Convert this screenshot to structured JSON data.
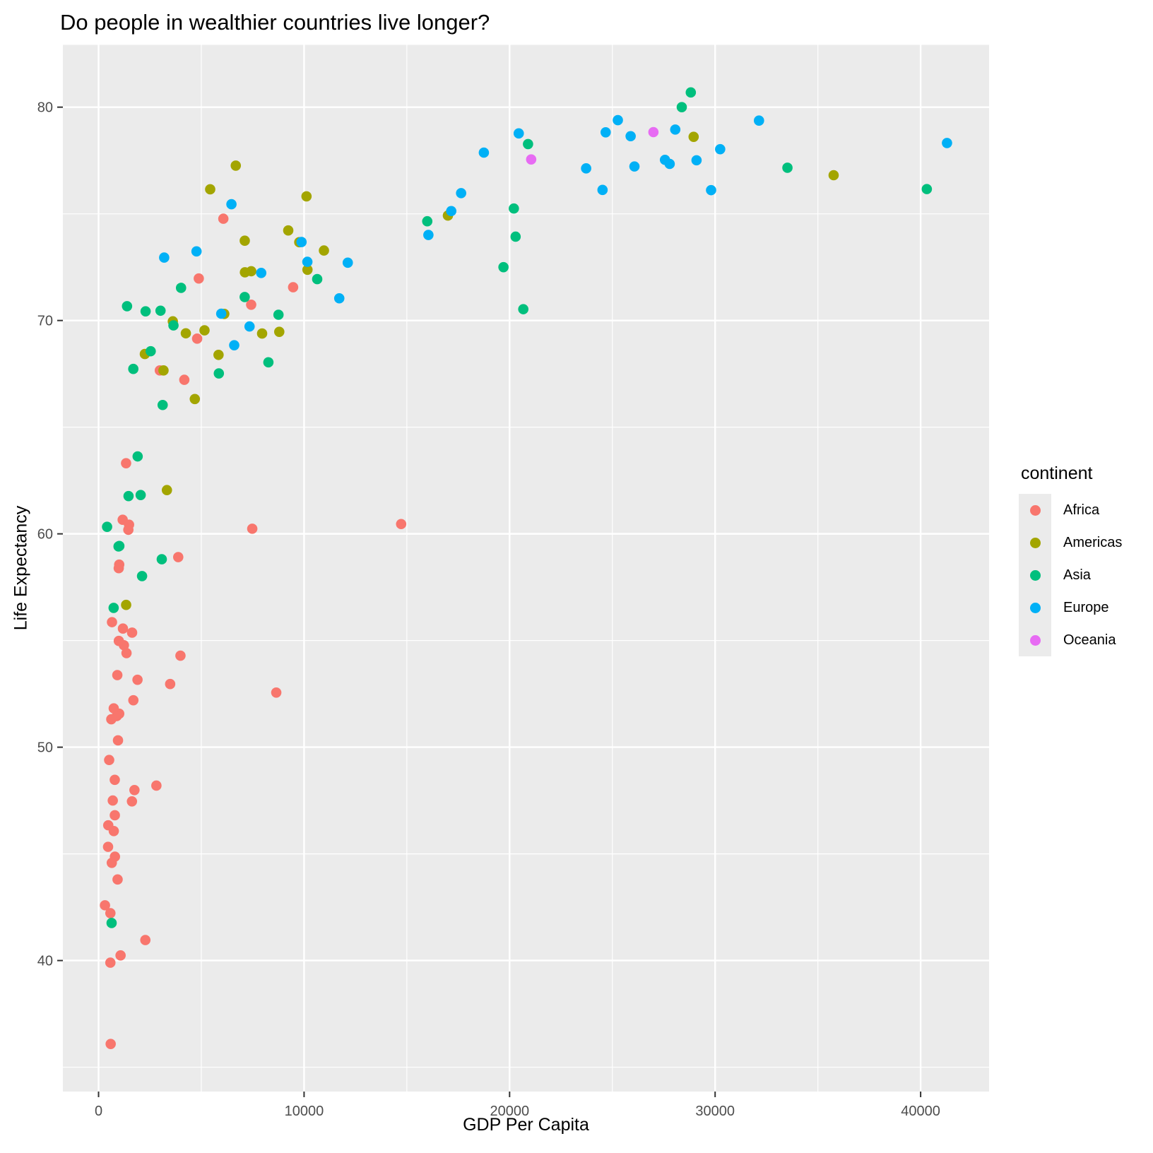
{
  "chart_data": {
    "type": "scatter",
    "title": "Do people in wealthier countries live longer?",
    "xlabel": "GDP Per Capita",
    "ylabel": "Life Expectancy",
    "legend_title": "continent",
    "legend_position": "right",
    "grid": true,
    "panel_bg": "#EBEBEB",
    "grid_color": "#FFFFFF",
    "tick_label_color": "#4D4D4D",
    "tick_mark_color": "#333333",
    "xlim": [
      -1736,
      43331
    ],
    "ylim": [
      33.86,
      82.92
    ],
    "x_ticks": {
      "values": [
        0,
        10000,
        20000,
        30000,
        40000
      ],
      "labels": [
        "0",
        "10000",
        "20000",
        "30000",
        "40000"
      ]
    },
    "y_ticks": {
      "values": [
        40,
        50,
        60,
        70,
        80
      ],
      "labels": [
        "40",
        "50",
        "60",
        "70",
        "80"
      ]
    },
    "x_minor": [
      5000,
      15000,
      25000,
      35000
    ],
    "y_minor": [
      35,
      45,
      55,
      65,
      75
    ],
    "series": [
      {
        "name": "Africa",
        "color": "#F8766D",
        "points": [
          [
            4797,
            69.15
          ],
          [
            2277,
            40.96
          ],
          [
            1233,
            54.78
          ],
          [
            8647,
            52.56
          ],
          [
            946,
            50.32
          ],
          [
            463,
            45.33
          ],
          [
            1694,
            52.2
          ],
          [
            741,
            46.07
          ],
          [
            1005,
            51.57
          ],
          [
            1174,
            60.66
          ],
          [
            312,
            42.59
          ],
          [
            3484,
            52.96
          ],
          [
            1747,
            47.99
          ],
          [
            1895,
            53.16
          ],
          [
            4173,
            67.22
          ],
          [
            2814,
            48.2
          ],
          [
            913,
            53.38
          ],
          [
            516,
            49.4
          ],
          [
            14723,
            60.46
          ],
          [
            654,
            55.86
          ],
          [
            1005,
            58.56
          ],
          [
            887,
            51.46
          ],
          [
            797,
            44.87
          ],
          [
            1360,
            54.41
          ],
          [
            1186,
            55.56
          ],
          [
            576,
            42.22
          ],
          [
            9467,
            71.56
          ],
          [
            986,
            54.98
          ],
          [
            692,
            47.5
          ],
          [
            739,
            51.82
          ],
          [
            1483,
            60.43
          ],
          [
            7426,
            70.74
          ],
          [
            2982,
            67.66
          ],
          [
            472,
            46.34
          ],
          [
            3877,
            58.91
          ],
          [
            620,
            51.31
          ],
          [
            1625,
            47.46
          ],
          [
            6072,
            74.77
          ],
          [
            590,
            36.09
          ],
          [
            1339,
            63.31
          ],
          [
            1450,
            60.19
          ],
          [
            575,
            39.9
          ],
          [
            926,
            43.8
          ],
          [
            7479,
            60.24
          ],
          [
            1632,
            55.37
          ],
          [
            3985,
            54.29
          ],
          [
            789,
            48.47
          ],
          [
            982,
            58.39
          ],
          [
            4877,
            71.97
          ],
          [
            644,
            44.58
          ],
          [
            1071,
            40.24
          ],
          [
            792,
            46.81
          ]
        ]
      },
      {
        "name": "Americas",
        "color": "#A3A500",
        "points": [
          [
            10967,
            73.28
          ],
          [
            3326,
            62.05
          ],
          [
            7958,
            69.39
          ],
          [
            28955,
            78.61
          ],
          [
            10118,
            75.82
          ],
          [
            6117,
            70.31
          ],
          [
            6677,
            77.26
          ],
          [
            5432,
            76.15
          ],
          [
            3614,
            69.96
          ],
          [
            7429,
            72.31
          ],
          [
            5155,
            69.54
          ],
          [
            4684,
            66.32
          ],
          [
            1342,
            56.67
          ],
          [
            3160,
            67.66
          ],
          [
            7122,
            72.26
          ],
          [
            9767,
            73.67
          ],
          [
            2253,
            68.43
          ],
          [
            7114,
            73.74
          ],
          [
            4247,
            69.4
          ],
          [
            5838,
            68.39
          ],
          [
            16999,
            74.92
          ],
          [
            8793,
            69.47
          ],
          [
            35767,
            76.81
          ],
          [
            9230,
            74.22
          ],
          [
            10165,
            72.38
          ]
        ]
      },
      {
        "name": "Asia",
        "color": "#00BF7D",
        "points": [
          [
            635,
            41.76
          ],
          [
            20292,
            73.93
          ],
          [
            973,
            59.41
          ],
          [
            734,
            56.53
          ],
          [
            2289,
            70.43
          ],
          [
            28378,
            80.0
          ],
          [
            1459,
            61.77
          ],
          [
            3119,
            66.04
          ],
          [
            8264,
            68.04
          ],
          [
            3076,
            58.81
          ],
          [
            20897,
            78.27
          ],
          [
            28817,
            80.69
          ],
          [
            3645,
            69.77
          ],
          [
            1691,
            67.73
          ],
          [
            15994,
            74.65
          ],
          [
            40301,
            76.16
          ],
          [
            8755,
            70.27
          ],
          [
            10639,
            71.94
          ],
          [
            1902,
            63.63
          ],
          [
            415,
            60.33
          ],
          [
            1011,
            59.43
          ],
          [
            19702,
            72.5
          ],
          [
            2049,
            61.82
          ],
          [
            2537,
            68.56
          ],
          [
            20667,
            70.53
          ],
          [
            33519,
            77.16
          ],
          [
            3015,
            70.46
          ],
          [
            4014,
            71.53
          ],
          [
            20207,
            75.25
          ],
          [
            5853,
            67.52
          ],
          [
            1386,
            70.67
          ],
          [
            7111,
            71.1
          ],
          [
            2117,
            58.02
          ]
        ]
      },
      {
        "name": "Europe",
        "color": "#00B0F6",
        "points": [
          [
            3193,
            72.95
          ],
          [
            29096,
            77.51
          ],
          [
            27561,
            77.53
          ],
          [
            4766,
            73.24
          ],
          [
            5970,
            70.32
          ],
          [
            9876,
            73.68
          ],
          [
            16049,
            74.01
          ],
          [
            29804,
            76.11
          ],
          [
            23724,
            77.13
          ],
          [
            25890,
            78.64
          ],
          [
            27789,
            77.34
          ],
          [
            18748,
            77.87
          ],
          [
            11713,
            71.04
          ],
          [
            28061,
            78.95
          ],
          [
            24522,
            76.12
          ],
          [
            24675,
            78.82
          ],
          [
            6466,
            75.45
          ],
          [
            30246,
            78.03
          ],
          [
            41283,
            78.32
          ],
          [
            10160,
            72.75
          ],
          [
            17641,
            75.97
          ],
          [
            7347,
            69.72
          ],
          [
            7914,
            72.23
          ],
          [
            12126,
            72.71
          ],
          [
            17161,
            75.13
          ],
          [
            20445,
            78.77
          ],
          [
            25267,
            79.39
          ],
          [
            32135,
            79.37
          ],
          [
            6601,
            68.84
          ],
          [
            26075,
            77.22
          ]
        ]
      },
      {
        "name": "Oceania",
        "color": "#E76BF3",
        "points": [
          [
            26998,
            78.83
          ],
          [
            21050,
            77.55
          ]
        ]
      }
    ]
  }
}
